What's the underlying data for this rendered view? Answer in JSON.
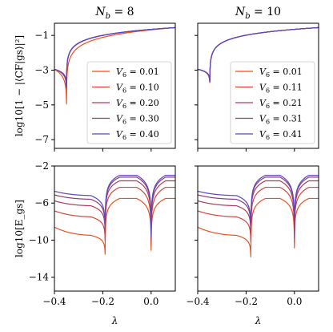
{
  "chart_data": [
    {
      "type": "line",
      "panel": "top-left",
      "title": "N_b = 8",
      "title_main": "N",
      "title_sub": "b",
      "title_rest": " = 8",
      "ylabel": "log10[1 − |⟨CF|gs⟩|²]",
      "xlim": [
        -0.4,
        0.1
      ],
      "ylim": [
        -7.5,
        -0.3
      ],
      "yticks": [
        -7,
        -5,
        -3,
        -1
      ],
      "ytick_labels": [
        "−7",
        "−5",
        "−3",
        "−1"
      ],
      "dip_x": -0.35,
      "legend_position": "lower-right",
      "series": [
        {
          "name": "V6 = 0.01",
          "label_value": "0.01",
          "color": "#f0501e",
          "dip_min": -7.2
        },
        {
          "name": "V6 = 0.10",
          "label_value": "0.10",
          "color": "#d4463c",
          "dip_min": -5.0
        },
        {
          "name": "V6 = 0.20",
          "label_value": "0.20",
          "color": "#b03c58",
          "dip_min": -4.7
        },
        {
          "name": "V6 = 0.30",
          "label_value": "0.30",
          "color": "#8a3e7a",
          "dip_min": -4.5
        },
        {
          "name": "V6 = 0.40",
          "label_value": "0.40",
          "color": "#5a46c8",
          "dip_min": -4.3
        }
      ]
    },
    {
      "type": "line",
      "panel": "top-right",
      "title": "N_b = 10",
      "title_main": "N",
      "title_sub": "b",
      "title_rest": " = 10",
      "xlim": [
        -0.4,
        0.1
      ],
      "ylim": [
        -7.5,
        -0.3
      ],
      "yticks": [
        -7,
        -5,
        -3,
        -1
      ],
      "dip_x": -0.35,
      "legend_position": "lower-right",
      "series": [
        {
          "name": "V6 = 0.01",
          "label_value": "0.01",
          "color": "#f0501e",
          "dip_min": -4.0
        },
        {
          "name": "V6 = 0.11",
          "label_value": "0.11",
          "color": "#d4463c",
          "dip_min": -3.95
        },
        {
          "name": "V6 = 0.21",
          "label_value": "0.21",
          "color": "#b03c58",
          "dip_min": -3.9
        },
        {
          "name": "V6 = 0.31",
          "label_value": "0.31",
          "color": "#8a3e7a",
          "dip_min": -3.85
        },
        {
          "name": "V6 = 0.41",
          "label_value": "0.41",
          "color": "#5a46c8",
          "dip_min": -3.8
        }
      ]
    },
    {
      "type": "line",
      "panel": "bottom-left",
      "ylabel": "log10[E_gs]",
      "xlabel": "λ",
      "xlim": [
        -0.4,
        0.1
      ],
      "ylim": [
        -15.5,
        -2
      ],
      "yticks": [
        -14,
        -10,
        -6,
        -2
      ],
      "ytick_labels": [
        "−14",
        "−10",
        "−6",
        "−2"
      ],
      "xticks": [
        -0.4,
        -0.2,
        0.0
      ],
      "xtick_labels": [
        "−0.4",
        "−0.2",
        "0.0"
      ],
      "dips": [
        -0.19,
        0.0
      ],
      "series": [
        {
          "name": "V6 = 0.01",
          "color": "#f0501e",
          "peak": -5.5,
          "edge": -4.0,
          "dip1": -13.5,
          "dip2": -14.2
        },
        {
          "name": "V6 = 0.10",
          "color": "#d4463c",
          "peak": -4.3,
          "edge": -3.2,
          "dip1": -12.5,
          "dip2": -14.0
        },
        {
          "name": "V6 = 0.20",
          "color": "#b03c58",
          "peak": -3.6,
          "edge": -2.7,
          "dip1": -12.0,
          "dip2": -13.5
        },
        {
          "name": "V6 = 0.30",
          "color": "#8a3e7a",
          "peak": -3.2,
          "edge": -2.4,
          "dip1": -12.0,
          "dip2": -13.2
        },
        {
          "name": "V6 = 0.40",
          "color": "#5a46c8",
          "peak": -3.0,
          "edge": -2.2,
          "dip1": -12.0,
          "dip2": -13.0
        }
      ]
    },
    {
      "type": "line",
      "panel": "bottom-right",
      "xlabel": "λ",
      "xlim": [
        -0.4,
        0.1
      ],
      "ylim": [
        -15.5,
        -2
      ],
      "yticks": [
        -14,
        -10,
        -6,
        -2
      ],
      "xticks": [
        -0.4,
        -0.2,
        0.0
      ],
      "xtick_labels": [
        "−0.4",
        "−0.2",
        "0.0"
      ],
      "dips": [
        -0.18,
        0.0
      ],
      "series": [
        {
          "name": "V6 = 0.01",
          "color": "#f0501e",
          "peak": -5.5,
          "edge": -4.0,
          "dip1": -14.0,
          "dip2": -13.8
        },
        {
          "name": "V6 = 0.11",
          "color": "#d4463c",
          "peak": -4.3,
          "edge": -3.2,
          "dip1": -12.8,
          "dip2": -13.5
        },
        {
          "name": "V6 = 0.21",
          "color": "#b03c58",
          "peak": -3.6,
          "edge": -2.7,
          "dip1": -12.2,
          "dip2": -13.2
        },
        {
          "name": "V6 = 0.31",
          "color": "#8a3e7a",
          "peak": -3.2,
          "edge": -2.4,
          "dip1": -12.0,
          "dip2": -13.0
        },
        {
          "name": "V6 = 0.41",
          "color": "#5a46c8",
          "peak": -3.0,
          "edge": -2.2,
          "dip1": -12.0,
          "dip2": -13.0
        }
      ]
    }
  ]
}
